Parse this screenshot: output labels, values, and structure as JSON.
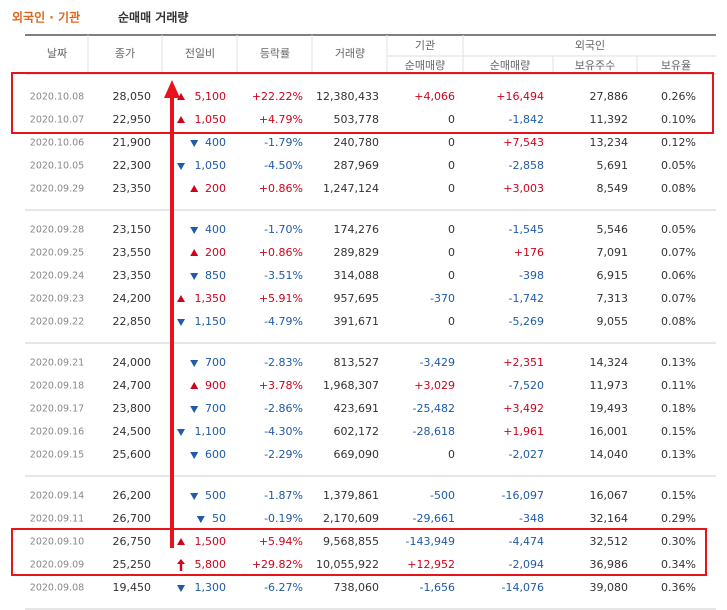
{
  "title": {
    "highlight": "외국인 · 기관",
    "rest": "순매매 거래량"
  },
  "header": {
    "top": [
      "날짜",
      "종가",
      "전일비",
      "등락률",
      "거래량",
      "기관",
      "외국인"
    ],
    "sub": [
      "순매매량",
      "순매매량",
      "보유주수",
      "보유율"
    ]
  },
  "rows": [
    [
      "2020.10.08",
      "28,050",
      "up",
      "5,100",
      "+22.22%",
      "12,380,433",
      "+4,066",
      "+16,494",
      "27,886",
      "0.26%"
    ],
    [
      "2020.10.07",
      "22,950",
      "up",
      "1,050",
      "+4.79%",
      "503,778",
      "0",
      "-1,842",
      "11,392",
      "0.10%"
    ],
    [
      "2020.10.06",
      "21,900",
      "down",
      "400",
      "-1.79%",
      "240,780",
      "0",
      "+7,543",
      "13,234",
      "0.12%"
    ],
    [
      "2020.10.05",
      "22,300",
      "down",
      "1,050",
      "-4.50%",
      "287,969",
      "0",
      "-2,858",
      "5,691",
      "0.05%"
    ],
    [
      "2020.09.29",
      "23,350",
      "up",
      "200",
      "+0.86%",
      "1,247,124",
      "0",
      "+3,003",
      "8,549",
      "0.08%"
    ],
    [
      "2020.09.28",
      "23,150",
      "down",
      "400",
      "-1.70%",
      "174,276",
      "0",
      "-1,545",
      "5,546",
      "0.05%"
    ],
    [
      "2020.09.25",
      "23,550",
      "up",
      "200",
      "+0.86%",
      "289,829",
      "0",
      "+176",
      "7,091",
      "0.07%"
    ],
    [
      "2020.09.24",
      "23,350",
      "down",
      "850",
      "-3.51%",
      "314,088",
      "0",
      "-398",
      "6,915",
      "0.06%"
    ],
    [
      "2020.09.23",
      "24,200",
      "up",
      "1,350",
      "+5.91%",
      "957,695",
      "-370",
      "-1,742",
      "7,313",
      "0.07%"
    ],
    [
      "2020.09.22",
      "22,850",
      "down",
      "1,150",
      "-4.79%",
      "391,671",
      "0",
      "-5,269",
      "9,055",
      "0.08%"
    ],
    [
      "2020.09.21",
      "24,000",
      "down",
      "700",
      "-2.83%",
      "813,527",
      "-3,429",
      "+2,351",
      "14,324",
      "0.13%"
    ],
    [
      "2020.09.18",
      "24,700",
      "up",
      "900",
      "+3.78%",
      "1,968,307",
      "+3,029",
      "-7,520",
      "11,973",
      "0.11%"
    ],
    [
      "2020.09.17",
      "23,800",
      "down",
      "700",
      "-2.86%",
      "423,691",
      "-25,482",
      "+3,492",
      "19,493",
      "0.18%"
    ],
    [
      "2020.09.16",
      "24,500",
      "down",
      "1,100",
      "-4.30%",
      "602,172",
      "-28,618",
      "+1,961",
      "16,001",
      "0.15%"
    ],
    [
      "2020.09.15",
      "25,600",
      "down",
      "600",
      "-2.29%",
      "669,090",
      "0",
      "-2,027",
      "14,040",
      "0.13%"
    ],
    [
      "2020.09.14",
      "26,200",
      "down",
      "500",
      "-1.87%",
      "1,379,861",
      "-500",
      "-16,097",
      "16,067",
      "0.15%"
    ],
    [
      "2020.09.11",
      "26,700",
      "down",
      "50",
      "-0.19%",
      "2,170,609",
      "-29,661",
      "-348",
      "32,164",
      "0.29%"
    ],
    [
      "2020.09.10",
      "26,750",
      "up",
      "1,500",
      "+5.94%",
      "9,568,855",
      "-143,949",
      "-4,474",
      "32,512",
      "0.30%"
    ],
    [
      "2020.09.09",
      "25,250",
      "limit",
      "5,800",
      "+29.82%",
      "10,055,922",
      "+12,952",
      "-2,094",
      "36,986",
      "0.34%"
    ],
    [
      "2020.09.08",
      "19,450",
      "down",
      "1,300",
      "-6.27%",
      "738,060",
      "-1,656",
      "-14,076",
      "39,080",
      "0.36%"
    ]
  ]
}
